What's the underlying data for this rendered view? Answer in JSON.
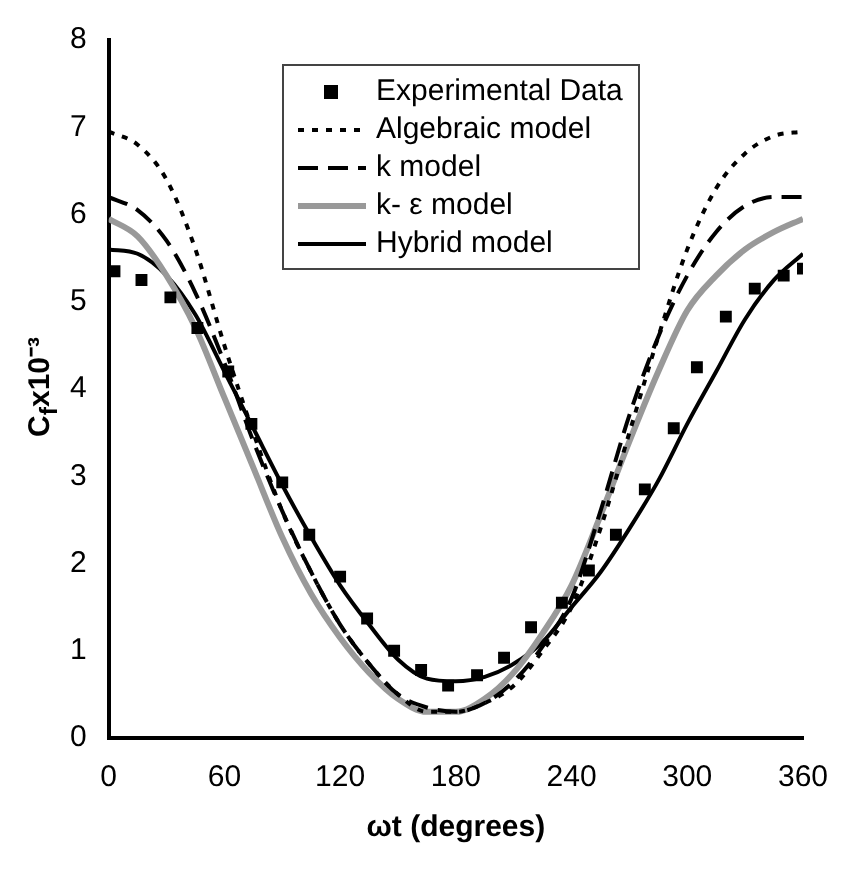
{
  "chart_data": {
    "type": "line",
    "xlabel": "ωt (degrees)",
    "ylabel": "C$_{f}$x10⁻³",
    "xlim": [
      0,
      360
    ],
    "xticks": [
      0,
      60,
      120,
      180,
      240,
      300,
      360
    ],
    "ylim": [
      0,
      8
    ],
    "yticks": [
      0,
      1,
      2,
      3,
      4,
      5,
      6,
      7,
      8
    ],
    "grid": false,
    "legend": "top",
    "series": [
      {
        "name": "Experimental Data",
        "type": "scatter",
        "marker": "square",
        "color": "#000000",
        "x": [
          3,
          17,
          32,
          46,
          62,
          74,
          90,
          104,
          120,
          134,
          148,
          162,
          176,
          191,
          205,
          219,
          235,
          249,
          263,
          278,
          293,
          305,
          320,
          335,
          350,
          360
        ],
        "values": [
          5.35,
          5.25,
          5.05,
          4.7,
          4.2,
          3.6,
          2.93,
          2.33,
          1.85,
          1.37,
          1.0,
          0.78,
          0.6,
          0.72,
          0.92,
          1.27,
          1.55,
          1.92,
          2.33,
          2.85,
          3.55,
          4.25,
          4.83,
          5.15,
          5.3,
          5.38
        ]
      },
      {
        "name": "Algebraic model",
        "type": "line",
        "line_style": "dotted",
        "color": "#000000",
        "x": [
          0,
          15,
          30,
          45,
          60,
          75,
          90,
          105,
          120,
          135,
          150,
          165,
          180,
          195,
          210,
          225,
          240,
          255,
          270,
          285,
          300,
          315,
          330,
          345,
          360
        ],
        "values": [
          6.95,
          6.8,
          6.4,
          5.6,
          4.5,
          3.5,
          2.6,
          1.9,
          1.3,
          0.85,
          0.5,
          0.3,
          0.3,
          0.4,
          0.6,
          1.0,
          1.5,
          2.4,
          3.5,
          4.6,
          5.6,
          6.3,
          6.7,
          6.9,
          6.95
        ]
      },
      {
        "name": "k model",
        "type": "line",
        "line_style": "dashed",
        "color": "#000000",
        "x": [
          0,
          15,
          30,
          45,
          60,
          75,
          90,
          105,
          120,
          135,
          150,
          165,
          180,
          195,
          210,
          225,
          240,
          255,
          270,
          285,
          300,
          315,
          330,
          345,
          360
        ],
        "values": [
          6.2,
          6.05,
          5.7,
          5.1,
          4.3,
          3.4,
          2.6,
          1.9,
          1.3,
          0.85,
          0.5,
          0.35,
          0.3,
          0.4,
          0.65,
          1.05,
          1.6,
          2.6,
          3.7,
          4.6,
          5.3,
          5.8,
          6.1,
          6.2,
          6.2
        ]
      },
      {
        "name": "k- ε model",
        "type": "line",
        "color": "#999999",
        "x": [
          0,
          15,
          30,
          45,
          60,
          75,
          90,
          105,
          120,
          135,
          150,
          165,
          180,
          195,
          210,
          225,
          240,
          255,
          270,
          285,
          300,
          315,
          330,
          345,
          360
        ],
        "values": [
          5.95,
          5.75,
          5.3,
          4.7,
          3.9,
          3.1,
          2.3,
          1.65,
          1.15,
          0.75,
          0.45,
          0.3,
          0.3,
          0.45,
          0.75,
          1.2,
          1.75,
          2.55,
          3.4,
          4.2,
          4.9,
          5.3,
          5.6,
          5.8,
          5.95
        ]
      },
      {
        "name": "Hybrid model",
        "type": "line",
        "color": "#000000",
        "x": [
          0,
          15,
          30,
          45,
          60,
          75,
          90,
          105,
          120,
          135,
          150,
          165,
          180,
          195,
          210,
          225,
          240,
          255,
          270,
          285,
          300,
          315,
          330,
          345,
          360
        ],
        "values": [
          5.6,
          5.55,
          5.3,
          4.85,
          4.2,
          3.55,
          2.9,
          2.3,
          1.75,
          1.3,
          0.9,
          0.68,
          0.65,
          0.7,
          0.85,
          1.1,
          1.5,
          1.9,
          2.4,
          2.95,
          3.6,
          4.2,
          4.8,
          5.25,
          5.55
        ]
      }
    ]
  }
}
